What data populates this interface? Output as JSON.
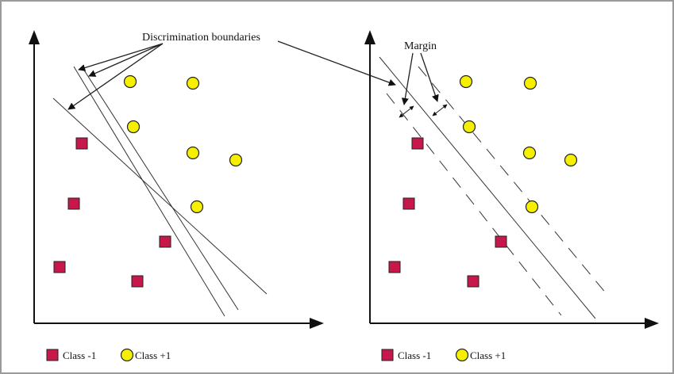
{
  "colors": {
    "class_neg": "#c8174a",
    "class_pos": "#f6f000",
    "stroke": "#222222",
    "frame": "#9a9a9a"
  },
  "left_panel": {
    "annotation": "Discrimination boundaries",
    "legend": {
      "neg_label": "Class -1",
      "pos_label": "Class +1"
    }
  },
  "right_panel": {
    "annotation": "Margin",
    "legend": {
      "neg_label": "Class -1",
      "pos_label": "Class +1"
    }
  }
}
